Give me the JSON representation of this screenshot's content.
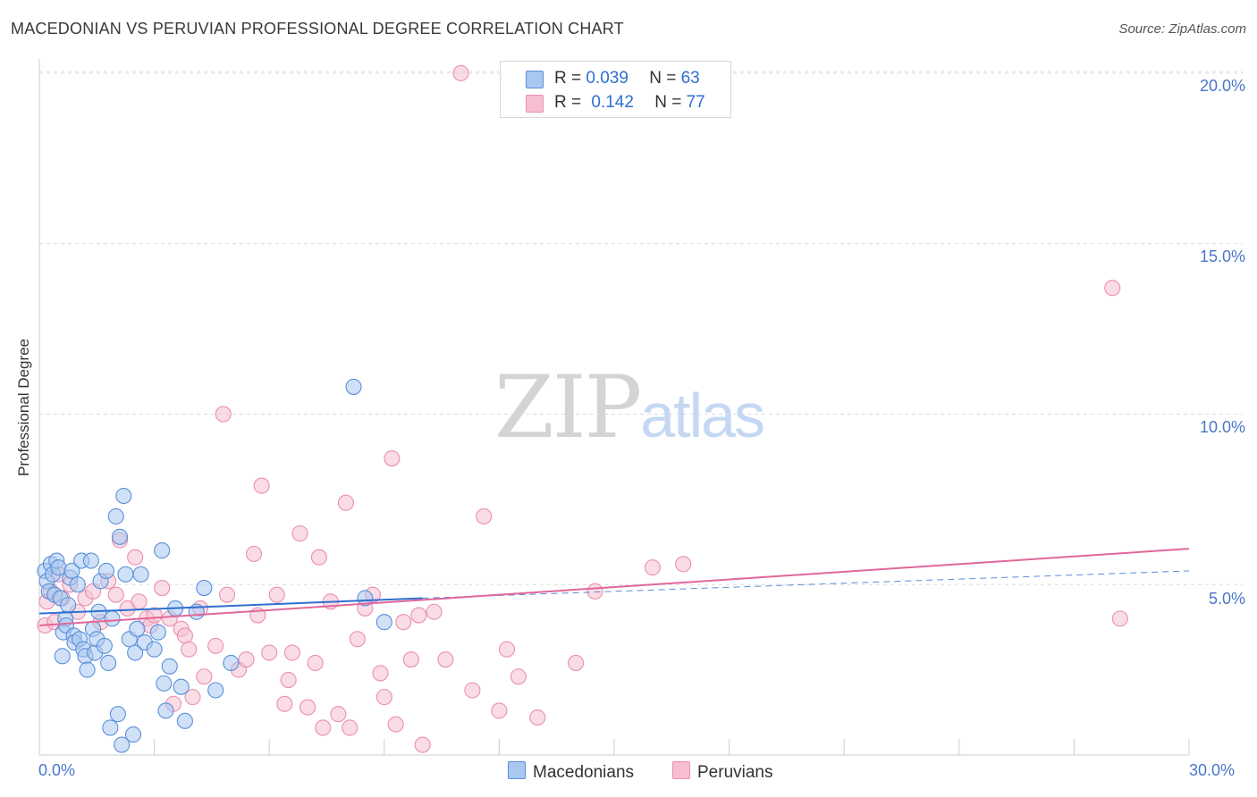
{
  "title": "MACEDONIAN VS PERUVIAN PROFESSIONAL DEGREE CORRELATION CHART",
  "source": "Source: ZipAtlas.com",
  "watermark": {
    "zip": "ZIP",
    "atlas": "atlas"
  },
  "legend": {
    "rows": [
      {
        "r_label": "R = ",
        "r_value": "0.039",
        "n_label": "N = ",
        "n_value": "63"
      },
      {
        "r_label": "R = ",
        "r_value": "0.142",
        "n_label": "N = ",
        "n_value": "77"
      }
    ]
  },
  "bottom_legend": {
    "macedonians": "Macedonians",
    "peruvians": "Peruvians"
  },
  "colors": {
    "blue_fill": "#a9c8f0",
    "blue_stroke": "#5a8fd8",
    "blue_line": "#2f6fd1",
    "pink_fill": "#f6bfd0",
    "pink_stroke": "#ea8fb0",
    "pink_line": "#e0679a",
    "grid": "#dcdcdc",
    "axis": "#cccccc",
    "tick_label": "#4a76c9"
  },
  "chart_data": {
    "type": "scatter",
    "title": "MACEDONIAN VS PERUVIAN PROFESSIONAL DEGREE CORRELATION CHART",
    "xlabel": "",
    "ylabel": "Professional Degree",
    "xlim": [
      0,
      30
    ],
    "ylim": [
      0,
      20.6
    ],
    "x_tick_labels": [
      "0.0%",
      "30.0%"
    ],
    "y_ticks": [
      5,
      10,
      15,
      20
    ],
    "y_tick_labels": [
      "5.0%",
      "10.0%",
      "15.0%",
      "20.0%"
    ],
    "grid": true,
    "legend_position": "top-center",
    "series": [
      {
        "name": "Macedonians",
        "color": "blue",
        "points": [
          [
            0.15,
            5.4
          ],
          [
            0.2,
            5.1
          ],
          [
            0.25,
            4.8
          ],
          [
            0.3,
            5.6
          ],
          [
            0.35,
            5.3
          ],
          [
            0.4,
            4.7
          ],
          [
            0.45,
            5.7
          ],
          [
            0.5,
            5.5
          ],
          [
            0.55,
            4.6
          ],
          [
            0.6,
            2.9
          ],
          [
            0.62,
            3.6
          ],
          [
            0.68,
            4.0
          ],
          [
            0.7,
            3.8
          ],
          [
            0.75,
            4.4
          ],
          [
            0.8,
            5.2
          ],
          [
            0.85,
            5.4
          ],
          [
            0.9,
            3.5
          ],
          [
            0.92,
            3.3
          ],
          [
            1.0,
            5.0
          ],
          [
            1.05,
            3.4
          ],
          [
            1.1,
            5.7
          ],
          [
            1.15,
            3.1
          ],
          [
            1.2,
            2.9
          ],
          [
            1.25,
            2.5
          ],
          [
            1.35,
            5.7
          ],
          [
            1.4,
            3.7
          ],
          [
            1.45,
            3.0
          ],
          [
            1.5,
            3.4
          ],
          [
            1.55,
            4.2
          ],
          [
            1.6,
            5.1
          ],
          [
            1.7,
            3.2
          ],
          [
            1.75,
            5.4
          ],
          [
            1.8,
            2.7
          ],
          [
            1.85,
            0.8
          ],
          [
            1.9,
            4.0
          ],
          [
            2.0,
            7.0
          ],
          [
            2.05,
            1.2
          ],
          [
            2.1,
            6.4
          ],
          [
            2.15,
            0.3
          ],
          [
            2.2,
            7.6
          ],
          [
            2.25,
            5.3
          ],
          [
            2.35,
            3.4
          ],
          [
            2.45,
            0.6
          ],
          [
            2.5,
            3.0
          ],
          [
            2.55,
            3.7
          ],
          [
            2.65,
            5.3
          ],
          [
            2.75,
            3.3
          ],
          [
            3.0,
            3.1
          ],
          [
            3.1,
            3.6
          ],
          [
            3.2,
            6.0
          ],
          [
            3.25,
            2.1
          ],
          [
            3.3,
            1.3
          ],
          [
            3.4,
            2.6
          ],
          [
            3.55,
            4.3
          ],
          [
            3.7,
            2.0
          ],
          [
            3.8,
            1.0
          ],
          [
            4.1,
            4.2
          ],
          [
            4.3,
            4.9
          ],
          [
            4.6,
            1.9
          ],
          [
            5.0,
            2.7
          ],
          [
            8.2,
            10.8
          ],
          [
            8.5,
            4.6
          ],
          [
            9.0,
            3.9
          ]
        ],
        "trend": {
          "x": [
            0,
            10
          ],
          "y": [
            4.15,
            4.6
          ]
        },
        "trend_extended": {
          "x": [
            10,
            30
          ],
          "y": [
            4.6,
            5.4
          ]
        }
      },
      {
        "name": "Peruvians",
        "color": "pink",
        "points": [
          [
            0.2,
            4.5
          ],
          [
            0.3,
            4.8
          ],
          [
            0.5,
            5.3
          ],
          [
            0.6,
            4.6
          ],
          [
            0.8,
            5.0
          ],
          [
            1.0,
            4.2
          ],
          [
            1.2,
            4.6
          ],
          [
            1.4,
            4.8
          ],
          [
            1.6,
            3.9
          ],
          [
            1.8,
            5.1
          ],
          [
            2.0,
            4.7
          ],
          [
            2.1,
            6.3
          ],
          [
            2.3,
            4.3
          ],
          [
            2.5,
            5.8
          ],
          [
            2.6,
            4.5
          ],
          [
            2.8,
            4.0
          ],
          [
            2.9,
            3.8
          ],
          [
            3.0,
            4.1
          ],
          [
            3.2,
            4.9
          ],
          [
            3.4,
            4.0
          ],
          [
            3.5,
            1.5
          ],
          [
            3.7,
            3.7
          ],
          [
            3.8,
            3.5
          ],
          [
            3.9,
            3.1
          ],
          [
            4.0,
            1.7
          ],
          [
            4.2,
            4.3
          ],
          [
            4.3,
            2.3
          ],
          [
            4.6,
            3.2
          ],
          [
            4.8,
            10.0
          ],
          [
            4.9,
            4.7
          ],
          [
            5.2,
            2.5
          ],
          [
            5.4,
            2.8
          ],
          [
            5.6,
            5.9
          ],
          [
            5.7,
            4.1
          ],
          [
            5.8,
            7.9
          ],
          [
            6.0,
            3.0
          ],
          [
            6.2,
            4.7
          ],
          [
            6.4,
            1.5
          ],
          [
            6.5,
            2.2
          ],
          [
            6.6,
            3.0
          ],
          [
            6.8,
            6.5
          ],
          [
            7.0,
            1.4
          ],
          [
            7.2,
            2.7
          ],
          [
            7.3,
            5.8
          ],
          [
            7.4,
            0.8
          ],
          [
            7.6,
            4.5
          ],
          [
            7.8,
            1.2
          ],
          [
            8.0,
            7.4
          ],
          [
            8.1,
            0.8
          ],
          [
            8.3,
            3.4
          ],
          [
            8.5,
            4.3
          ],
          [
            8.7,
            4.7
          ],
          [
            8.9,
            2.4
          ],
          [
            9.0,
            1.7
          ],
          [
            9.2,
            8.7
          ],
          [
            9.3,
            0.9
          ],
          [
            9.5,
            3.9
          ],
          [
            9.7,
            2.8
          ],
          [
            9.9,
            4.1
          ],
          [
            10.0,
            0.3
          ],
          [
            10.3,
            4.2
          ],
          [
            10.6,
            2.8
          ],
          [
            11.0,
            20.0
          ],
          [
            11.3,
            1.9
          ],
          [
            11.6,
            7.0
          ],
          [
            12.0,
            1.3
          ],
          [
            12.2,
            3.1
          ],
          [
            12.5,
            2.3
          ],
          [
            13.0,
            1.1
          ],
          [
            14.0,
            2.7
          ],
          [
            14.5,
            4.8
          ],
          [
            16.0,
            5.5
          ],
          [
            16.8,
            5.6
          ],
          [
            28.0,
            13.7
          ],
          [
            28.2,
            4.0
          ],
          [
            0.15,
            3.8
          ],
          [
            0.4,
            3.9
          ]
        ],
        "trend": {
          "x": [
            0,
            30
          ],
          "y": [
            3.8,
            6.05
          ]
        }
      }
    ]
  }
}
